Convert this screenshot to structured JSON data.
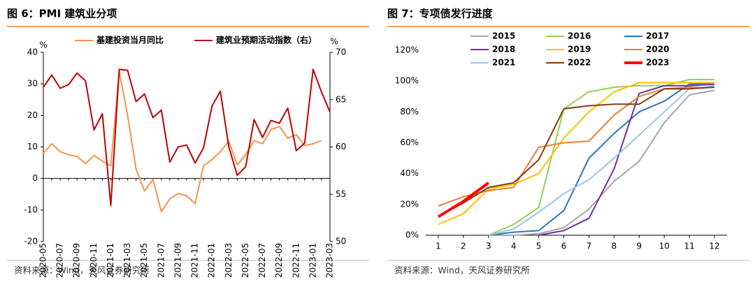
{
  "chart_data": [
    {
      "type": "line",
      "title": "图 6：PMI 建筑业分项",
      "source": "资料来源：Wind，天风证券研究所",
      "y_unit": "%",
      "y2_unit": "%",
      "categories": [
        "2020-05",
        null,
        "2020-07",
        null,
        "2020-09",
        null,
        "2020-11",
        null,
        "2021-01",
        null,
        "2021-03",
        null,
        "2021-05",
        null,
        "2021-07",
        null,
        "2021-09",
        null,
        "2021-11",
        null,
        "2022-01",
        null,
        "2022-03",
        null,
        "2022-05",
        null,
        "2022-07",
        null,
        "2022-09",
        null,
        "2022-11",
        null,
        "2023-01",
        null,
        "2023-03"
      ],
      "ylim": [
        -20,
        40
      ],
      "yticks": [
        -20,
        -10,
        0,
        10,
        20,
        30,
        40
      ],
      "y2lim": [
        50,
        70
      ],
      "y2ticks": [
        50,
        55,
        60,
        65,
        70
      ],
      "legend": "top",
      "series": [
        {
          "name": "基建投资当月同比",
          "color": "#f4934a",
          "width": 2,
          "values": [
            8,
            11,
            8.5,
            7.5,
            7,
            4.7,
            7.3,
            5.5,
            4,
            34,
            20,
            3,
            -4,
            -0.3,
            -10.5,
            -6.5,
            -4.8,
            -5.5,
            -8,
            4,
            6,
            8.5,
            11.8,
            4.3,
            7.5,
            12,
            11,
            15.5,
            16.5,
            12.8,
            13.9,
            10.4,
            11,
            12,
            null
          ]
        },
        {
          "name": "建筑业预期活动指数（右）",
          "color": "#c00000",
          "width": 2,
          "axis": "y2",
          "values": [
            66.3,
            67.6,
            66.2,
            66.6,
            67.8,
            67.0,
            61.8,
            63.5,
            53.8,
            68.2,
            68.1,
            64.8,
            65.6,
            63.1,
            63.9,
            58.4,
            60.0,
            60.2,
            58.3,
            59.9,
            64.3,
            65.9,
            60.0,
            57.0,
            57.9,
            62.9,
            61.0,
            62.8,
            62.5,
            64.1,
            59.6,
            60.4,
            68.2,
            65.8,
            63.7
          ]
        }
      ]
    },
    {
      "type": "line",
      "title": "图 7：专项债发行进度",
      "source": "资料来源：Wind，天风证券研究所",
      "x": [
        1,
        2,
        3,
        4,
        5,
        6,
        7,
        8,
        9,
        10,
        11,
        12
      ],
      "xlim": [
        0.5,
        12.5
      ],
      "xticks": [
        1,
        2,
        3,
        4,
        5,
        6,
        7,
        8,
        9,
        10,
        11,
        12
      ],
      "ylim": [
        0,
        120
      ],
      "yticks": [
        {
          "value": 0,
          "label": "0%"
        },
        {
          "value": 20,
          "label": "20%"
        },
        {
          "value": 40,
          "label": "40%"
        },
        {
          "value": 60,
          "label": "60%"
        },
        {
          "value": 80,
          "label": "80%"
        },
        {
          "value": 100,
          "label": "100%"
        },
        {
          "value": 120,
          "label": "120%"
        }
      ],
      "legend": "top",
      "series": [
        {
          "name": "2015",
          "color": "#a6a6a6",
          "width": 2,
          "values": [
            null,
            null,
            0,
            0,
            1,
            5,
            17,
            35,
            48,
            73,
            91,
            94
          ]
        },
        {
          "name": "2016",
          "color": "#92d050",
          "width": 2,
          "values": [
            null,
            null,
            0,
            7,
            18,
            82,
            93,
            96,
            97,
            97,
            101,
            101
          ]
        },
        {
          "name": "2017",
          "color": "#2e75b6",
          "width": 2,
          "values": [
            null,
            null,
            0,
            2,
            3,
            16,
            50,
            66,
            80,
            87,
            98,
            99
          ]
        },
        {
          "name": "2018",
          "color": "#7030a0",
          "width": 2,
          "values": [
            null,
            null,
            null,
            null,
            0,
            3,
            11,
            43,
            92,
            97,
            97,
            98
          ]
        },
        {
          "name": "2019",
          "color": "#ffc000",
          "width": 2,
          "values": [
            7,
            14,
            30,
            33,
            40,
            63,
            80,
            93,
            99,
            99,
            99,
            99
          ]
        },
        {
          "name": "2020",
          "color": "#ed7d31",
          "width": 2,
          "values": [
            19,
            25,
            29,
            31,
            57,
            60,
            61,
            78,
            90,
            95,
            96,
            96
          ]
        },
        {
          "name": "2021",
          "color": "#9dc3e6",
          "width": 2,
          "values": [
            null,
            null,
            0,
            4,
            15,
            27,
            36,
            50,
            65,
            80,
            95,
            97
          ]
        },
        {
          "name": "2022",
          "color": "#843c0c",
          "width": 2,
          "values": [
            12,
            21,
            31,
            34,
            49,
            82,
            84,
            85,
            85,
            95,
            95,
            96
          ]
        },
        {
          "name": "2023",
          "color": "#ff0000",
          "width": 4,
          "values": [
            12,
            22,
            34,
            null,
            null,
            null,
            null,
            null,
            null,
            null,
            null,
            null
          ]
        }
      ]
    }
  ]
}
